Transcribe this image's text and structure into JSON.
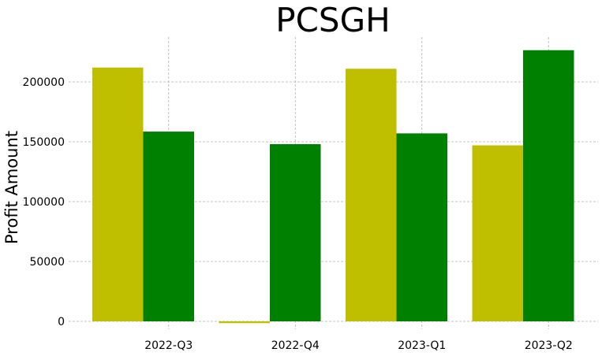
{
  "chart_data": {
    "type": "bar",
    "title": "PCSGH",
    "xlabel": "",
    "ylabel": "Profit Amount",
    "categories": [
      "2022-Q3",
      "2022-Q4",
      "2023-Q1",
      "2023-Q2"
    ],
    "series": [
      {
        "color": "#bfbf00",
        "values": [
          212000,
          -1500,
          211000,
          147000
        ]
      },
      {
        "color": "#008000",
        "values": [
          158500,
          148000,
          157000,
          226500
        ]
      }
    ],
    "yticks": [
      "0",
      "50000",
      "100000",
      "150000",
      "200000"
    ],
    "ylim": [
      -5000,
      240000
    ],
    "grid": true,
    "legend": "none"
  }
}
